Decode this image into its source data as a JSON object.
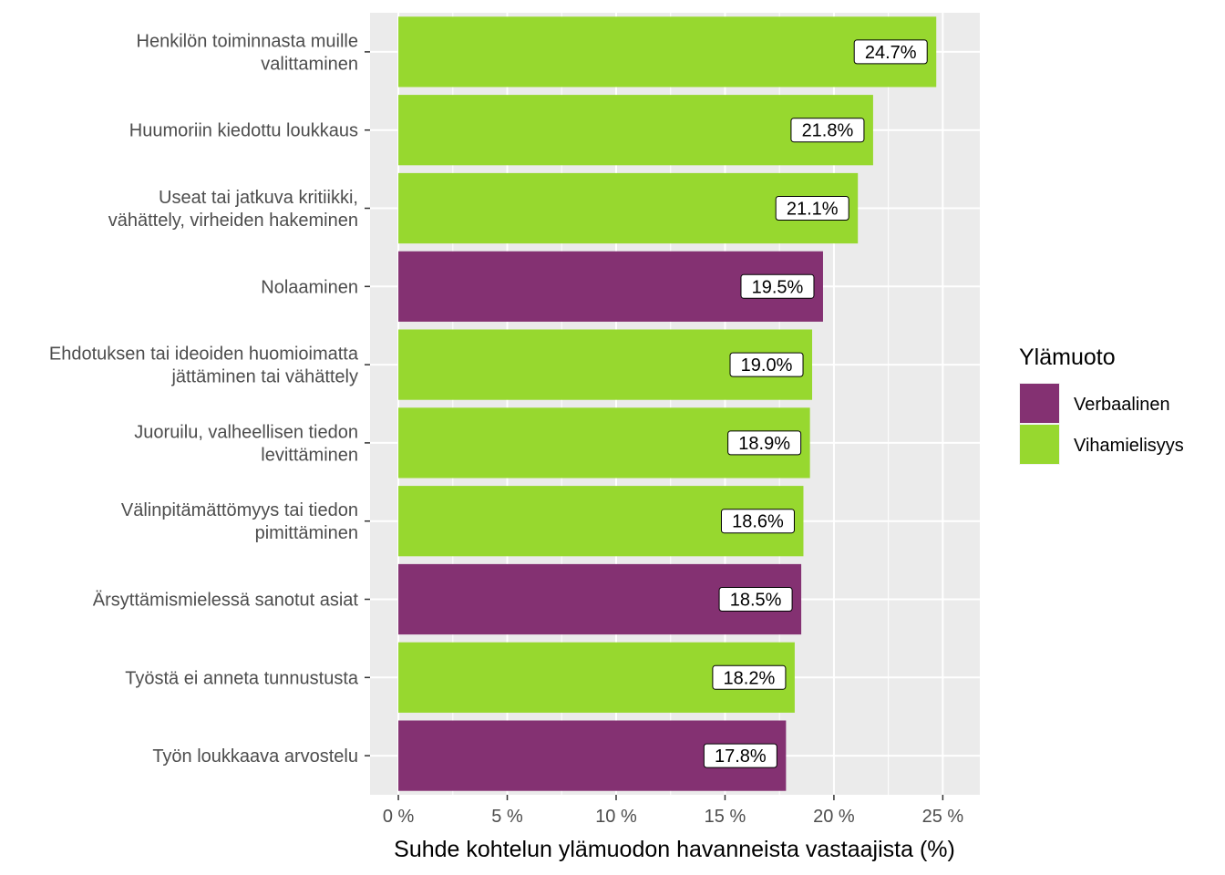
{
  "chart_data": {
    "type": "bar",
    "orientation": "horizontal",
    "categories": [
      [
        "Henkilön toiminnasta muille",
        "valittaminen"
      ],
      [
        "Huumoriin kiedottu loukkaus"
      ],
      [
        "Useat tai jatkuva kritiikki,",
        "vähättely, virheiden hakeminen"
      ],
      [
        "Nolaaminen"
      ],
      [
        "Ehdotuksen tai ideoiden huomioimatta",
        "jättäminen tai vähättely"
      ],
      [
        "Juoruilu, valheellisen tiedon",
        "levittäminen"
      ],
      [
        "Välinpitämättömyys tai tiedon",
        "pimittäminen"
      ],
      [
        "Ärsyttämismielessä sanotut asiat"
      ],
      [
        "Työstä ei anneta tunnustusta"
      ],
      [
        "Työn loukkaava arvostelu"
      ]
    ],
    "values": [
      24.7,
      21.8,
      21.1,
      19.5,
      19.0,
      18.9,
      18.6,
      18.5,
      18.2,
      17.8
    ],
    "value_labels": [
      "24.7%",
      "21.8%",
      "21.1%",
      "19.5%",
      "19.0%",
      "18.9%",
      "18.6%",
      "18.5%",
      "18.2%",
      "17.8%"
    ],
    "groups": [
      "Vihamielisyys",
      "Vihamielisyys",
      "Vihamielisyys",
      "Verbaalinen",
      "Vihamielisyys",
      "Vihamielisyys",
      "Vihamielisyys",
      "Verbaalinen",
      "Vihamielisyys",
      "Verbaalinen"
    ],
    "xlabel": "Suhde kohtelun ylämuodon havanneista vastaajista (%)",
    "ylabel": "",
    "xlim": [
      -1.3,
      26.7
    ],
    "xticks": [
      0,
      5,
      10,
      15,
      20,
      25
    ],
    "xtick_labels": [
      "0 %",
      "5 %",
      "10 %",
      "15 %",
      "20 %",
      "25 %"
    ],
    "grid": true,
    "legend": {
      "title": "Ylämuoto",
      "position": "right",
      "entries": [
        {
          "name": "Verbaalinen",
          "color": "#843172"
        },
        {
          "name": "Vihamielisyys",
          "color": "#97d82f"
        }
      ]
    },
    "panel_background": "#ebebeb",
    "grid_color": "#ffffff"
  }
}
